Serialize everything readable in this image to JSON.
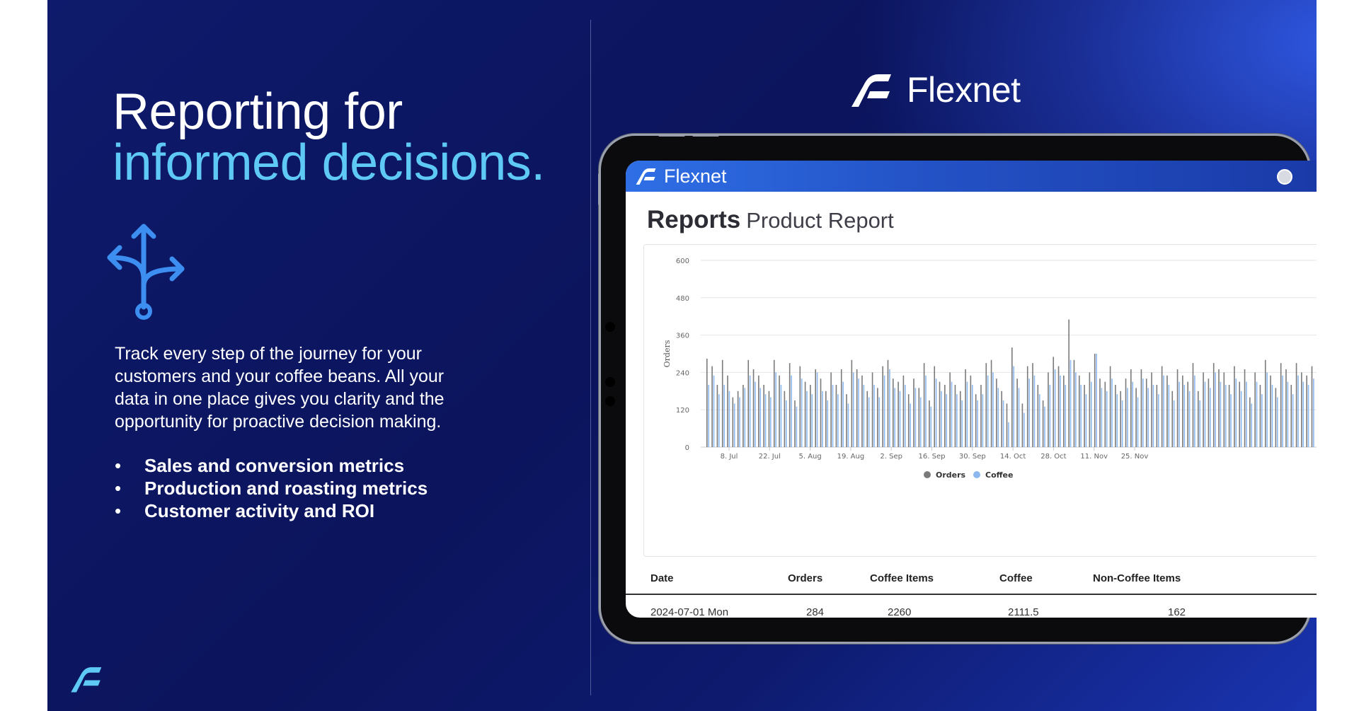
{
  "headline": {
    "line1": "Reporting for",
    "line2": "informed decisions."
  },
  "body": "Track every step of the journey for your customers and your coffee beans. All your data in one place gives you clarity and the opportunity for proactive decision making.",
  "bullets": [
    {
      "marker": "•",
      "text": "Sales and conversion metrics"
    },
    {
      "marker": "•",
      "text": "Production and roasting metrics"
    },
    {
      "marker": "•",
      "text": "Customer activity and ROI"
    }
  ],
  "brand": {
    "name": "Flexnet"
  },
  "app": {
    "name": "Flexnet",
    "title": "Reports",
    "subtitle": "Product Report"
  },
  "colors": {
    "accent": "#5ec9f5",
    "orders": "#7a7a7a",
    "coffee": "#8bb8ef",
    "background": "#0b145c"
  },
  "chart_data": {
    "type": "bar",
    "ylabel": "Orders",
    "ylim": [
      0,
      600
    ],
    "yticks": [
      0,
      120,
      240,
      360,
      480,
      600
    ],
    "xticks": [
      "8. Jul",
      "22. Jul",
      "5. Aug",
      "19. Aug",
      "2. Sep",
      "16. Sep",
      "30. Sep",
      "14. Oct",
      "28. Oct",
      "11. Nov",
      "25. Nov"
    ],
    "legend": {
      "position": "bottom"
    },
    "series": [
      {
        "name": "Orders",
        "values": [
          284,
          260,
          200,
          280,
          230,
          160,
          180,
          200,
          280,
          250,
          230,
          200,
          180,
          280,
          230,
          180,
          270,
          150,
          260,
          210,
          200,
          250,
          220,
          180,
          240,
          200,
          250,
          170,
          280,
          250,
          230,
          180,
          240,
          190,
          260,
          280,
          220,
          210,
          230,
          170,
          220,
          190,
          270,
          150,
          260,
          210,
          200,
          240,
          200,
          180,
          250,
          230,
          170,
          200,
          270,
          280,
          220,
          180,
          140,
          320,
          220,
          140,
          260,
          270,
          200,
          150,
          240,
          290,
          260,
          230,
          410,
          280,
          230,
          200,
          240,
          300,
          220,
          210,
          260,
          200,
          180,
          220,
          250,
          190,
          250,
          220,
          240,
          200,
          260,
          230,
          180,
          250,
          230,
          210,
          270,
          180,
          240,
          220,
          270,
          250,
          240,
          200,
          260,
          210,
          250,
          160,
          240,
          200,
          280,
          230,
          190,
          270,
          250,
          200,
          270,
          240,
          230,
          260
        ]
      },
      {
        "name": "Coffee",
        "values": [
          200,
          230,
          170,
          200,
          180,
          140,
          160,
          190,
          230,
          210,
          190,
          170,
          160,
          240,
          200,
          150,
          230,
          130,
          220,
          180,
          170,
          240,
          180,
          150,
          200,
          170,
          210,
          140,
          240,
          220,
          200,
          160,
          200,
          160,
          230,
          250,
          190,
          180,
          200,
          140,
          190,
          160,
          230,
          130,
          220,
          180,
          170,
          210,
          170,
          150,
          210,
          200,
          150,
          170,
          230,
          240,
          190,
          150,
          80,
          260,
          190,
          110,
          220,
          230,
          170,
          130,
          200,
          250,
          230,
          200,
          280,
          240,
          200,
          170,
          210,
          300,
          190,
          180,
          220,
          170,
          150,
          190,
          210,
          160,
          220,
          190,
          200,
          170,
          230,
          200,
          150,
          210,
          200,
          180,
          230,
          150,
          210,
          190,
          240,
          210,
          200,
          170,
          220,
          180,
          210,
          140,
          210,
          170,
          240,
          200,
          160,
          230,
          210,
          170,
          230,
          210,
          200,
          220
        ]
      }
    ]
  },
  "table": {
    "headers": {
      "date": "Date",
      "orders": "Orders",
      "coffee_items": "Coffee Items",
      "coffee": "Coffee",
      "non_coffee": "Non-Coffee Items"
    },
    "rows": [
      {
        "date": "2024-07-01 Mon",
        "orders": "284",
        "coffee_items": "2260",
        "coffee": "2111.5",
        "non_coffee": "162"
      }
    ]
  }
}
